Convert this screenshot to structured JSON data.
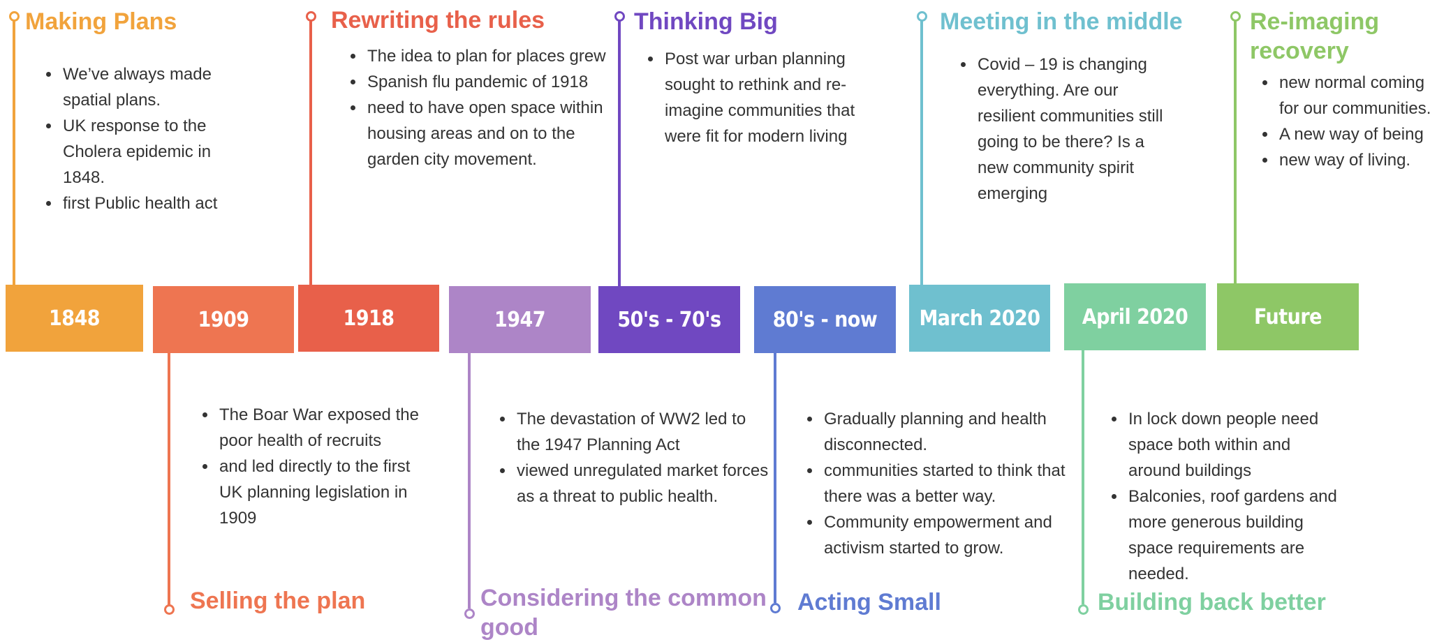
{
  "colors": {
    "c1848": "#f1a33c",
    "c1909": "#ee7551",
    "c1918": "#e8604a",
    "c1947": "#ad85c7",
    "c5070": "#7048c1",
    "c80s": "#5f7bd2",
    "cMar": "#6fc0cf",
    "cApr": "#7fd0a0",
    "cFuture": "#8ec766",
    "text": "#333333"
  },
  "eras": [
    {
      "label": "1848",
      "color_key": "c1848",
      "position": "top",
      "title": "Making Plans",
      "bullets": [
        "We’ve always made spatial plans.",
        "UK response to the Cholera epidemic in 1848.",
        "first Public health act"
      ]
    },
    {
      "label": "1909",
      "color_key": "c1909",
      "position": "bottom",
      "title": "Selling the plan",
      "bullets": [
        "The Boar War exposed the poor health of recruits",
        " and led directly to the first UK planning legislation in 1909"
      ]
    },
    {
      "label": "1918",
      "color_key": "c1918",
      "position": "top",
      "title": "Rewriting the rules",
      "bullets": [
        "The idea to plan for places grew",
        " Spanish flu pandemic of 1918",
        "need to have open space within housing areas and on to the garden city movement."
      ]
    },
    {
      "label": "1947",
      "color_key": "c1947",
      "position": "bottom",
      "title": "Considering the common good",
      "bullets": [
        "The devastation of WW2 led to the 1947 Planning Act",
        " viewed unregulated market forces as a threat to public health."
      ]
    },
    {
      "label": "50's - 70's",
      "color_key": "c5070",
      "position": "top",
      "title": "Thinking Big",
      "bullets": [
        "Post war urban planning sought to rethink and re-imagine communities that were fit for modern living"
      ]
    },
    {
      "label": "80's - now",
      "color_key": "c80s",
      "position": "bottom",
      "title": "Acting Small",
      "bullets": [
        "Gradually planning and health disconnected.",
        "communities started to think that there was a better way.",
        "Community empowerment and activism started to grow."
      ]
    },
    {
      "label": "March 2020",
      "color_key": "cMar",
      "position": "top",
      "title": "Meeting in the middle",
      "bullets": [
        "Covid – 19 is changing everything. Are our resilient communities still going to be there? Is a new community spirit emerging"
      ]
    },
    {
      "label": "April 2020",
      "color_key": "cApr",
      "position": "bottom",
      "title": "Building back better",
      "bullets": [
        "In lock down people need space both within and around buildings",
        " Balconies, roof gardens and more generous building space requirements are needed."
      ]
    },
    {
      "label": "Future",
      "color_key": "cFuture",
      "position": "top",
      "title": "Re-imaging recovery",
      "bullets": [
        "new normal coming for our communities.",
        " A new way of being",
        "new way of living."
      ]
    }
  ]
}
